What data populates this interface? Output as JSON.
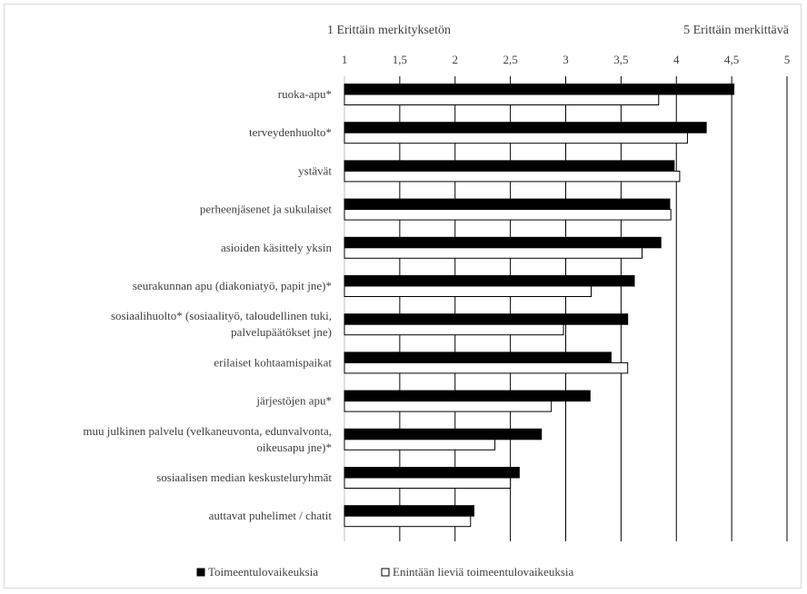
{
  "chart_data": {
    "type": "bar",
    "orientation": "horizontal",
    "scale_labels": {
      "min": "1 Erittäin merkityksetön",
      "max": "5 Erittäin merkittävä"
    },
    "xlim": [
      1,
      5
    ],
    "ticks": [
      1,
      1.5,
      2,
      2.5,
      3,
      3.5,
      4,
      4.5,
      5
    ],
    "tick_labels": [
      "1",
      "1,5",
      "2",
      "2,5",
      "3",
      "3,5",
      "4",
      "4,5",
      "5"
    ],
    "grid": true,
    "legend_position": "bottom",
    "categories": [
      "ruoka-apu*",
      "terveydenhuolto*",
      "ystävät",
      "perheenjäsenet ja sukulaiset",
      "asioiden käsittely yksin",
      "seurakunnan apu (diakoniatyö, papit jne)*",
      "sosiaalihuolto* (sosiaalityö, taloudellinen tuki, palvelupäätökset jne)",
      "erilaiset kohtaamispaikat",
      "järjestöjen apu*",
      "muu julkinen palvelu (velkaneuvonta, edunvalvonta, oikeusapu jne)*",
      "sosiaalisen median keskusteluryhmät",
      "auttavat puhelimet / chatit"
    ],
    "category_label_lines": [
      [
        "ruoka-apu*"
      ],
      [
        "terveydenhuolto*"
      ],
      [
        "ystävät"
      ],
      [
        "perheenjäsenet ja sukulaiset"
      ],
      [
        "asioiden käsittely yksin"
      ],
      [
        "seurakunnan apu (diakoniatyö, papit jne)*"
      ],
      [
        "sosiaalihuolto* (sosiaalityö, taloudellinen tuki,",
        "palvelupäätökset jne)"
      ],
      [
        "erilaiset kohtaamispaikat"
      ],
      [
        "järjestöjen apu*"
      ],
      [
        "muu julkinen palvelu (velkaneuvonta, edunvalvonta,",
        "oikeusapu jne)*"
      ],
      [
        "sosiaalisen median keskusteluryhmät"
      ],
      [
        "auttavat puhelimet / chatit"
      ]
    ],
    "series": [
      {
        "name": "Toimeentulovaikeuksia",
        "color": "#000000",
        "values": [
          4.52,
          4.27,
          3.98,
          3.94,
          3.86,
          3.62,
          3.56,
          3.41,
          3.22,
          2.78,
          2.58,
          2.17
        ]
      },
      {
        "name": "Enintään lieviä toimeentulovaikeuksia",
        "color": "#ffffff",
        "values": [
          3.84,
          4.1,
          4.03,
          3.95,
          3.69,
          3.23,
          2.98,
          3.56,
          2.87,
          2.36,
          2.5,
          2.14
        ]
      }
    ]
  }
}
